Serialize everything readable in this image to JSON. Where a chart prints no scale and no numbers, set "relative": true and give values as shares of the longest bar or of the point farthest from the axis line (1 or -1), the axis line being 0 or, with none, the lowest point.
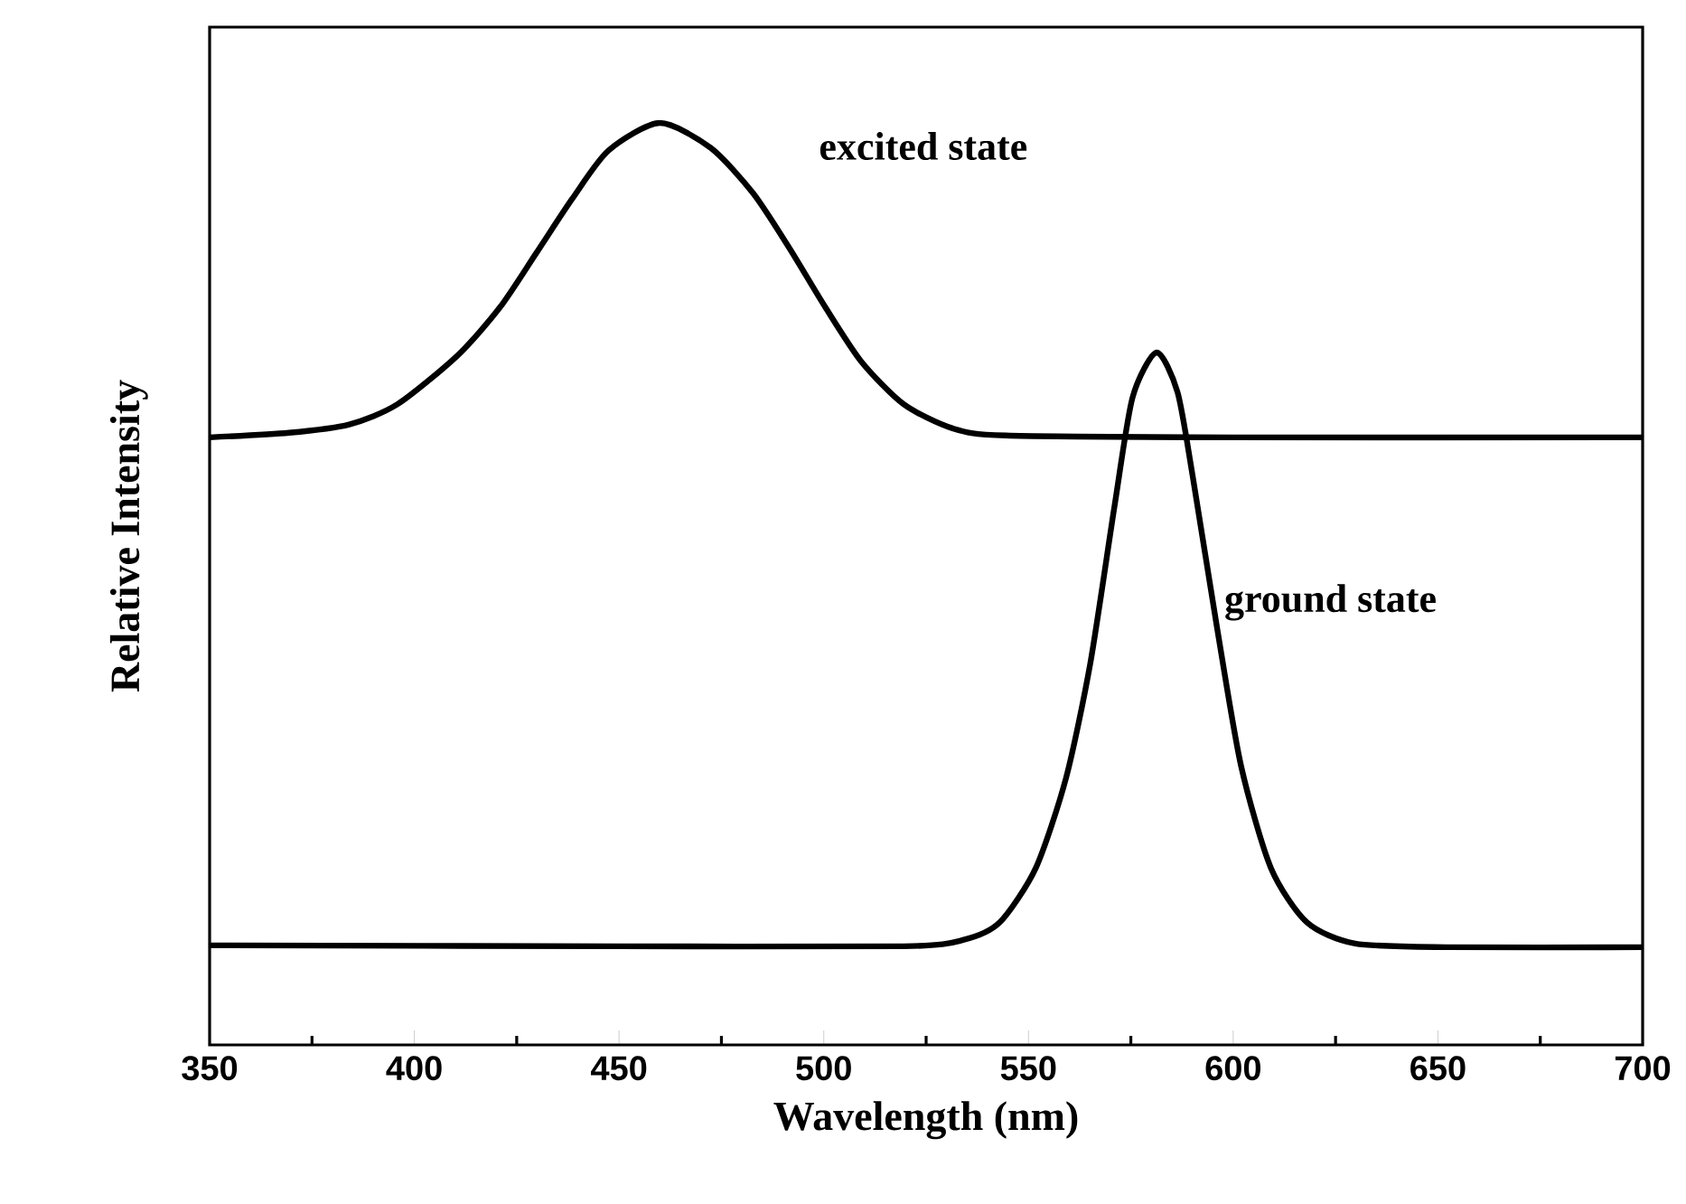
{
  "chart_data": {
    "type": "line",
    "relative": true,
    "xlabel": "Wavelength (nm)",
    "ylabel": "Relative Intensity",
    "xlim": [
      350,
      700
    ],
    "xticks": [
      350,
      {
        "value": 375,
        "label": null
      },
      400,
      {
        "value": 425,
        "label": null
      },
      450,
      {
        "value": 475,
        "label": null
      },
      500,
      {
        "value": 525,
        "label": null
      },
      550,
      {
        "value": 575,
        "label": null
      },
      600,
      {
        "value": 625,
        "label": null
      },
      650,
      {
        "value": 675,
        "label": null
      },
      700
    ],
    "grid": false,
    "marker": "none",
    "line_style": "solid",
    "series": [
      {
        "name": "excited state",
        "color": "#000000",
        "x": [
          350,
          369.4,
          384.1,
          395.9,
          410.6,
          420.9,
          429.8,
          438.6,
          447.4,
          459.9,
          472.4,
          482.7,
          491.5,
          500.4,
          509.2,
          519.5,
          531.3,
          544.5,
          600,
          700
        ],
        "values": [
          0.659,
          0.664,
          0.673,
          0.695,
          0.748,
          0.8,
          0.859,
          0.918,
          0.97,
          1.0,
          0.973,
          0.924,
          0.865,
          0.8,
          0.741,
          0.695,
          0.669,
          0.661,
          0.659,
          0.659
        ]
      },
      {
        "name": "ground state",
        "color": "#000000",
        "x": [
          350,
          450,
          519.5,
          534.2,
          543.0,
          551.8,
          559.2,
          565.1,
          571.0,
          575.4,
          581.3,
          586.4,
          590.1,
          596.0,
          601.9,
          609.2,
          618.0,
          629.8,
          651.9,
          700
        ],
        "values": [
          0.108,
          0.107,
          0.107,
          0.114,
          0.133,
          0.192,
          0.29,
          0.414,
          0.584,
          0.702,
          0.751,
          0.708,
          0.617,
          0.454,
          0.303,
          0.192,
          0.133,
          0.11,
          0.106,
          0.106
        ]
      }
    ]
  }
}
